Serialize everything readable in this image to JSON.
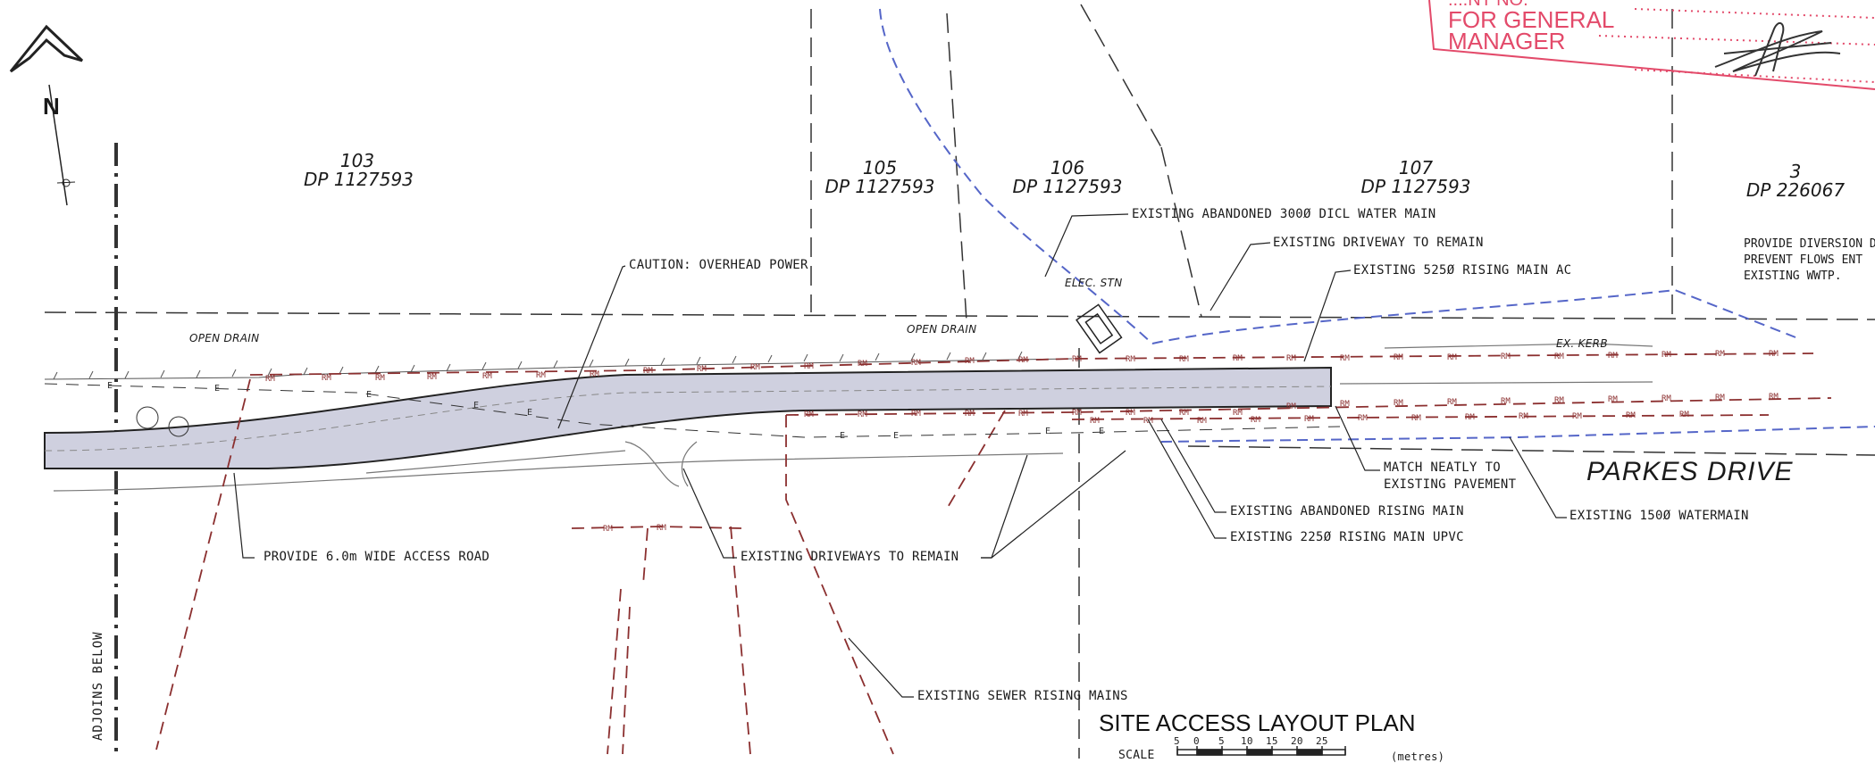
{
  "north_label": "N",
  "lots": [
    {
      "id": "103",
      "dp": "DP 1127593"
    },
    {
      "id": "105",
      "dp": "DP 1127593"
    },
    {
      "id": "106",
      "dp": "DP 1127593"
    },
    {
      "id": "107",
      "dp": "DP 1127593"
    },
    {
      "id": "3",
      "dp": "DP 226067"
    }
  ],
  "annotations": {
    "abandoned_water_main": "EXISTING ABANDONED 300Ø DICL WATER MAIN",
    "driveway_remain": "EXISTING DRIVEWAY TO REMAIN",
    "rising_main_ac": "EXISTING 525Ø RISING MAIN AC",
    "overhead_power": "CAUTION: OVERHEAD POWER",
    "elec_stn": "ELEC. STN",
    "open_drain_1": "OPEN    DRAIN",
    "open_drain_2": "OPEN    DRAIN",
    "ex_kerb": "EX. KERB",
    "match_pavement_1": "MATCH NEATLY TO",
    "match_pavement_2": "EXISTING PAVEMENT",
    "abandoned_rising_main": "EXISTING ABANDONED RISING MAIN",
    "rising_main_upvc": "EXISTING 225Ø RISING MAIN UPVC",
    "watermain": "EXISTING 150Ø WATERMAIN",
    "access_road": "PROVIDE 6.0m WIDE ACCESS ROAD",
    "driveways_remain": "EXISTING DRIVEWAYS TO REMAIN",
    "sewer_rising_mains": "EXISTING SEWER RISING MAINS",
    "diversion_1": "PROVIDE DIVERSION D",
    "diversion_2": "PREVENT FLOWS ENT",
    "diversion_3": "EXISTING WWTP."
  },
  "street_name": "PARKES DRIVE",
  "adjoins": "ADJOINS BELOW",
  "title": "SITE ACCESS LAYOUT PLAN",
  "scale": {
    "label": "SCALE",
    "ticks": [
      "5",
      "0",
      "5",
      "10",
      "15",
      "20",
      "25"
    ],
    "unit": "(metres)"
  },
  "stamp": {
    "line1": "FOR GENERAL",
    "line2": "MANAGER",
    "top_fragment": "....NT NO."
  },
  "line_codes": {
    "rising_main": "RM",
    "electric": "E"
  },
  "colors": {
    "road_fill": "#cfd0df",
    "rising_main": "#8b2f2f",
    "water_main": "#5566c8",
    "stamp": "#e34a6a"
  }
}
